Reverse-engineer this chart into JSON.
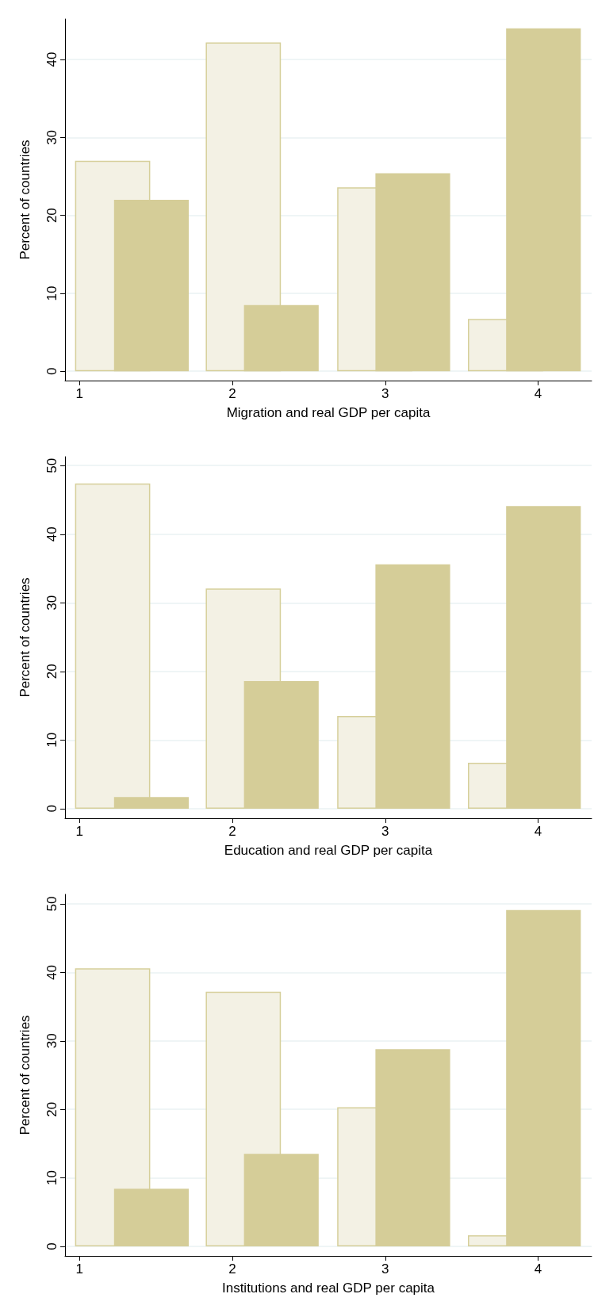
{
  "chart_data": [
    {
      "type": "bar",
      "xlabel": "Migration and real GDP per capita",
      "ylabel": "Percent of countries",
      "xlim": [
        0.905,
        4.35
      ],
      "xticks": [
        1,
        2,
        3,
        4
      ],
      "ylim": [
        -1.2,
        45.2
      ],
      "yticks": [
        0,
        10,
        20,
        30,
        40
      ],
      "grid": "y",
      "series": [
        {
          "color": "#f3f1e4",
          "x": [
            1.215,
            2.07,
            2.93,
            3.785
          ],
          "values": [
            27.0,
            42.2,
            23.6,
            6.7
          ]
        },
        {
          "color": "#d5cd98",
          "x": [
            1.47,
            2.32,
            3.18,
            4.035
          ],
          "values": [
            22.0,
            8.5,
            25.4,
            44.0
          ]
        }
      ]
    },
    {
      "type": "bar",
      "xlabel": "Education and real GDP per capita",
      "ylabel": "Percent of countries",
      "xlim": [
        0.905,
        4.35
      ],
      "xticks": [
        1,
        2,
        3,
        4
      ],
      "ylim": [
        -1.4,
        51.3
      ],
      "yticks": [
        0,
        10,
        20,
        30,
        40,
        50
      ],
      "grid": "y",
      "series": [
        {
          "color": "#f3f1e4",
          "x": [
            1.215,
            2.07,
            2.93,
            3.785
          ],
          "values": [
            47.4,
            32.1,
            13.5,
            6.7
          ]
        },
        {
          "color": "#d5cd98",
          "x": [
            1.47,
            2.32,
            3.18,
            4.035
          ],
          "values": [
            1.7,
            18.6,
            35.6,
            44.1
          ]
        }
      ]
    },
    {
      "type": "bar",
      "xlabel": "Institutions and real GDP per capita",
      "ylabel": "Percent of countries",
      "xlim": [
        0.905,
        4.35
      ],
      "xticks": [
        1,
        2,
        3,
        4
      ],
      "ylim": [
        -1.4,
        51.4
      ],
      "yticks": [
        0,
        10,
        20,
        30,
        40,
        50
      ],
      "grid": "y",
      "series": [
        {
          "color": "#f3f1e4",
          "x": [
            1.215,
            2.07,
            2.93,
            3.785
          ],
          "values": [
            40.6,
            37.2,
            20.3,
            1.6
          ]
        },
        {
          "color": "#d5cd98",
          "x": [
            1.47,
            2.32,
            3.18,
            4.035
          ],
          "values": [
            8.4,
            13.5,
            28.8,
            49.1
          ]
        }
      ]
    }
  ]
}
